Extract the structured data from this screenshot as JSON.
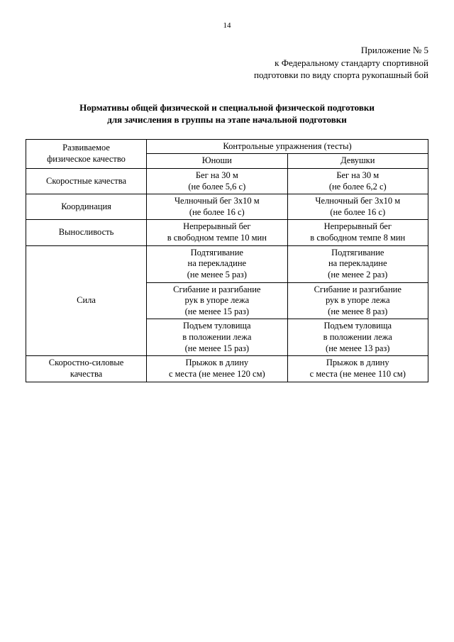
{
  "page_number": "14",
  "header": {
    "line1": "Приложение № 5",
    "line2": "к Федеральному стандарту спортивной",
    "line3": "подготовки по виду спорта рукопашный бой"
  },
  "title": {
    "line1": "Нормативы общей физической и специальной физической подготовки",
    "line2": "для зачисления в группы на этапе начальной подготовки"
  },
  "table": {
    "head_col1_l1": "Развиваемое",
    "head_col1_l2": "физическое качество",
    "head_tests": "Контрольные упражнения (тесты)",
    "head_boys": "Юноши",
    "head_girls": "Девушки",
    "rows": {
      "speed": {
        "label": "Скоростные качества",
        "boys_l1": "Бег на 30 м",
        "boys_l2": "(не более 5,6 с)",
        "girls_l1": "Бег на 30 м",
        "girls_l2": "(не более 6,2 с)"
      },
      "coord": {
        "label": "Координация",
        "boys_l1": "Челночный бег 3х10 м",
        "boys_l2": "(не более 16 с)",
        "girls_l1": "Челночный бег 3х10 м",
        "girls_l2": "(не более 16 с)"
      },
      "endur": {
        "label": "Выносливость",
        "boys_l1": "Непрерывный бег",
        "boys_l2": "в свободном темпе 10 мин",
        "girls_l1": "Непрерывный бег",
        "girls_l2": "в свободном темпе 8 мин"
      },
      "strength": {
        "label": "Сила",
        "pull_boys_l1": "Подтягивание",
        "pull_boys_l2": "на перекладине",
        "pull_boys_l3": "(не менее 5 раз)",
        "pull_girls_l1": "Подтягивание",
        "pull_girls_l2": "на перекладине",
        "pull_girls_l3": "(не менее 2 раз)",
        "push_boys_l1": "Сгибание и разгибание",
        "push_boys_l2": "рук в упоре лежа",
        "push_boys_l3": "(не менее 15 раз)",
        "push_girls_l1": "Сгибание и разгибание",
        "push_girls_l2": "рук в упоре лежа",
        "push_girls_l3": "(не менее 8 раз)",
        "sit_boys_l1": "Подъем туловища",
        "sit_boys_l2": "в положении лежа",
        "sit_boys_l3": "(не менее 15 раз)",
        "sit_girls_l1": "Подъем туловища",
        "sit_girls_l2": "в положении лежа",
        "sit_girls_l3": "(не менее 13 раз)"
      },
      "power": {
        "label_l1": "Скоростно-силовые",
        "label_l2": "качества",
        "boys_l1": "Прыжок в длину",
        "boys_l2": "с места (не менее 120 см)",
        "girls_l1": "Прыжок в длину",
        "girls_l2": "с места (не менее 110 см)"
      }
    }
  }
}
